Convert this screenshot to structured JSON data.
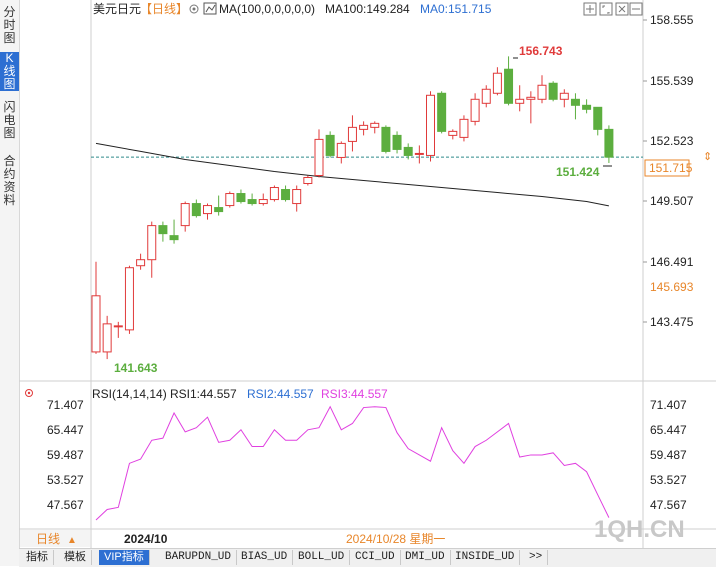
{
  "left_tabs": [
    "分时图",
    "K线图",
    "闪电图",
    "合约资料"
  ],
  "header": {
    "symbol": "美元日元",
    "period": "【日线】",
    "ma_params": "MA(100,0,0,0,0,0)",
    "ma100": "MA100:149.284",
    "ma0": "MA0:151.715"
  },
  "price_axis": {
    "labels": [
      "158.555",
      "155.539",
      "152.523",
      "149.507",
      "146.491",
      "143.475"
    ],
    "current_price": "151.715",
    "hover_price": "145.693"
  },
  "annotations": {
    "high": "156.743",
    "low": "141.643",
    "last_low": "151.424"
  },
  "rsi": {
    "title": "RSI(14,14,14)",
    "rsi1": "RSI1:44.557",
    "rsi2": "RSI2:44.557",
    "rsi3": "RSI3:44.557",
    "labels": [
      "71.407",
      "65.447",
      "59.487",
      "53.527",
      "47.567"
    ]
  },
  "date_bar": {
    "period_label": "日线",
    "month": "2024/10",
    "cursor_date": "2024/10/28 星期一"
  },
  "watermark": "1QH.CN",
  "bottom_tabs": [
    "指标",
    "模板",
    "VIP指标",
    "BARUPDN_UD",
    "BIAS_UD",
    "BOLL_UD",
    "CCI_UD",
    "DMI_UD",
    "INSIDE_UD",
    ">>"
  ],
  "colors": {
    "up": "#e03a3a",
    "down": "#5cae3f",
    "ma": "#222222",
    "rsi": "#e040e0",
    "accent": "#2d6fd2",
    "current_price": "#e8862a"
  },
  "chart_data": {
    "type": "candlestick",
    "y_range": [
      140.5,
      159.2
    ],
    "candles": [
      {
        "o": 142.0,
        "h": 146.5,
        "l": 141.9,
        "c": 144.8
      },
      {
        "o": 142.0,
        "h": 143.8,
        "l": 141.643,
        "c": 143.4
      },
      {
        "o": 143.3,
        "h": 143.5,
        "l": 142.7,
        "c": 143.3
      },
      {
        "o": 143.1,
        "h": 146.3,
        "l": 142.9,
        "c": 146.2
      },
      {
        "o": 146.3,
        "h": 146.9,
        "l": 146.1,
        "c": 146.6
      },
      {
        "o": 146.6,
        "h": 148.5,
        "l": 145.7,
        "c": 148.3
      },
      {
        "o": 148.3,
        "h": 148.5,
        "l": 147.5,
        "c": 147.9
      },
      {
        "o": 147.8,
        "h": 148.6,
        "l": 147.4,
        "c": 147.6
      },
      {
        "o": 148.3,
        "h": 149.5,
        "l": 148.0,
        "c": 149.4
      },
      {
        "o": 149.4,
        "h": 149.6,
        "l": 148.7,
        "c": 148.8
      },
      {
        "o": 148.9,
        "h": 149.4,
        "l": 148.6,
        "c": 149.3
      },
      {
        "o": 149.2,
        "h": 149.8,
        "l": 148.8,
        "c": 149.0
      },
      {
        "o": 149.3,
        "h": 150.0,
        "l": 149.2,
        "c": 149.9
      },
      {
        "o": 149.9,
        "h": 150.1,
        "l": 149.4,
        "c": 149.5
      },
      {
        "o": 149.6,
        "h": 149.9,
        "l": 149.3,
        "c": 149.4
      },
      {
        "o": 149.4,
        "h": 149.9,
        "l": 149.3,
        "c": 149.6
      },
      {
        "o": 149.6,
        "h": 150.3,
        "l": 149.5,
        "c": 150.2
      },
      {
        "o": 150.1,
        "h": 150.3,
        "l": 149.5,
        "c": 149.6
      },
      {
        "o": 149.4,
        "h": 150.3,
        "l": 149.0,
        "c": 150.1
      },
      {
        "o": 150.4,
        "h": 150.8,
        "l": 150.3,
        "c": 150.7
      },
      {
        "o": 150.8,
        "h": 153.1,
        "l": 150.7,
        "c": 152.6
      },
      {
        "o": 152.8,
        "h": 153.0,
        "l": 151.7,
        "c": 151.8
      },
      {
        "o": 151.7,
        "h": 152.5,
        "l": 151.4,
        "c": 152.4
      },
      {
        "o": 152.5,
        "h": 153.8,
        "l": 152.0,
        "c": 153.2
      },
      {
        "o": 153.1,
        "h": 153.5,
        "l": 152.8,
        "c": 153.3
      },
      {
        "o": 153.2,
        "h": 153.5,
        "l": 152.9,
        "c": 153.4
      },
      {
        "o": 153.2,
        "h": 153.3,
        "l": 151.9,
        "c": 152.0
      },
      {
        "o": 152.8,
        "h": 153.0,
        "l": 151.9,
        "c": 152.1
      },
      {
        "o": 152.2,
        "h": 152.4,
        "l": 151.6,
        "c": 151.8
      },
      {
        "o": 151.9,
        "h": 152.3,
        "l": 151.4,
        "c": 151.9
      },
      {
        "o": 151.8,
        "h": 155.0,
        "l": 151.5,
        "c": 154.8
      },
      {
        "o": 154.9,
        "h": 155.0,
        "l": 152.9,
        "c": 153.0
      },
      {
        "o": 152.8,
        "h": 153.1,
        "l": 152.6,
        "c": 153.0
      },
      {
        "o": 152.7,
        "h": 153.8,
        "l": 152.5,
        "c": 153.6
      },
      {
        "o": 153.5,
        "h": 154.9,
        "l": 153.3,
        "c": 154.6
      },
      {
        "o": 154.4,
        "h": 155.3,
        "l": 154.2,
        "c": 155.1
      },
      {
        "o": 154.9,
        "h": 156.2,
        "l": 154.8,
        "c": 155.9
      },
      {
        "o": 156.1,
        "h": 156.743,
        "l": 154.3,
        "c": 154.4
      },
      {
        "o": 154.4,
        "h": 155.3,
        "l": 154.0,
        "c": 154.6
      },
      {
        "o": 154.6,
        "h": 155.0,
        "l": 153.4,
        "c": 154.7
      },
      {
        "o": 154.6,
        "h": 155.8,
        "l": 154.4,
        "c": 155.3
      },
      {
        "o": 155.4,
        "h": 155.5,
        "l": 154.5,
        "c": 154.6
      },
      {
        "o": 154.6,
        "h": 155.1,
        "l": 154.2,
        "c": 154.9
      },
      {
        "o": 154.6,
        "h": 154.9,
        "l": 153.6,
        "c": 154.3
      },
      {
        "o": 154.3,
        "h": 154.6,
        "l": 153.9,
        "c": 154.1
      },
      {
        "o": 154.2,
        "h": 154.2,
        "l": 152.8,
        "c": 153.1
      },
      {
        "o": 153.1,
        "h": 153.3,
        "l": 151.424,
        "c": 151.715
      }
    ],
    "ma100": [
      [
        0,
        152.4
      ],
      [
        4,
        152.0
      ],
      [
        8,
        151.6
      ],
      [
        12,
        151.3
      ],
      [
        16,
        151.0
      ],
      [
        20,
        150.75
      ],
      [
        24,
        150.55
      ],
      [
        28,
        150.35
      ],
      [
        32,
        150.15
      ],
      [
        36,
        149.95
      ],
      [
        40,
        149.75
      ],
      [
        44,
        149.5
      ],
      [
        46,
        149.284
      ]
    ],
    "rsi_range": [
      42.5,
      73.5
    ],
    "rsi_values": [
      44.0,
      46.5,
      47.0,
      57.5,
      58.5,
      63.0,
      63.5,
      69.5,
      65.0,
      66.0,
      68.5,
      62.5,
      63.0,
      65.5,
      61.5,
      61.5,
      65.5,
      63.0,
      63.0,
      65.5,
      66.0,
      71.0,
      65.5,
      67.0,
      70.8,
      71.0,
      70.8,
      64.8,
      61.0,
      59.5,
      58.0,
      66.0,
      60.5,
      57.5,
      61.5,
      63.0,
      65.0,
      67.0,
      59.0,
      59.5,
      59.5,
      60.0,
      57.0,
      57.5,
      55.5,
      50.0,
      44.557
    ]
  }
}
